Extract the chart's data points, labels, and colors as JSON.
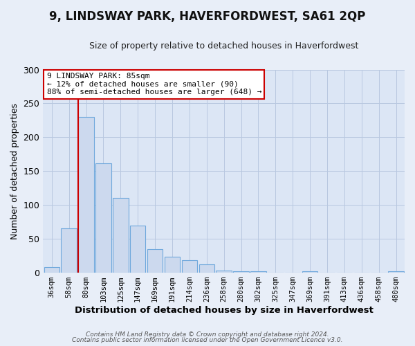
{
  "title": "9, LINDSWAY PARK, HAVERFORDWEST, SA61 2QP",
  "subtitle": "Size of property relative to detached houses in Haverfordwest",
  "xlabel": "Distribution of detached houses by size in Haverfordwest",
  "ylabel": "Number of detached properties",
  "bar_labels": [
    "36sqm",
    "58sqm",
    "80sqm",
    "103sqm",
    "125sqm",
    "147sqm",
    "169sqm",
    "191sqm",
    "214sqm",
    "236sqm",
    "258sqm",
    "280sqm",
    "302sqm",
    "325sqm",
    "347sqm",
    "369sqm",
    "391sqm",
    "413sqm",
    "436sqm",
    "458sqm",
    "480sqm"
  ],
  "bar_values": [
    8,
    65,
    230,
    162,
    110,
    70,
    35,
    24,
    18,
    12,
    3,
    2,
    2,
    0,
    0,
    2,
    0,
    0,
    0,
    0,
    2
  ],
  "bar_color": "#ccd9ee",
  "bar_edge_color": "#6fa8dc",
  "ylim": [
    0,
    300
  ],
  "yticks": [
    0,
    50,
    100,
    150,
    200,
    250,
    300
  ],
  "annotation_title": "9 LINDSWAY PARK: 85sqm",
  "annotation_line1": "← 12% of detached houses are smaller (90)",
  "annotation_line2": "88% of semi-detached houses are larger (648) →",
  "footer1": "Contains HM Land Registry data © Crown copyright and database right 2024.",
  "footer2": "Contains public sector information licensed under the Open Government Licence v3.0.",
  "bg_color": "#e8eef8",
  "plot_bg_color": "#dce6f5",
  "grid_color": "#b8c8e0",
  "annotation_box_color": "#ffffff",
  "annotation_box_edge": "#cc0000",
  "marker_line_color": "#cc0000",
  "title_fontsize": 12,
  "subtitle_fontsize": 9
}
